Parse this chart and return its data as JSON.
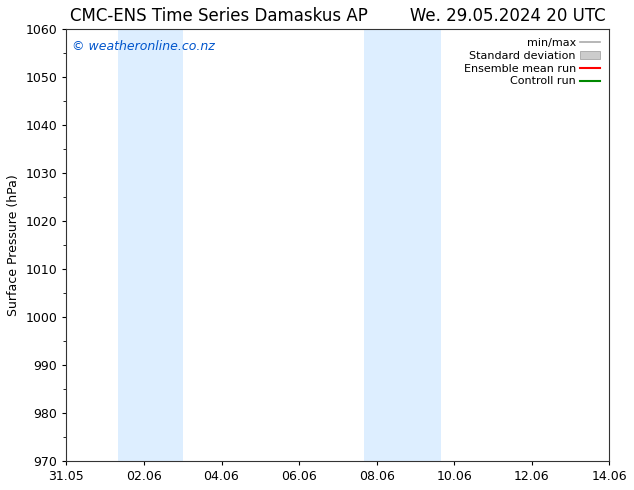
{
  "title_left": "CMC-ENS Time Series Damaskus AP",
  "title_right": "We. 29.05.2024 20 UTC",
  "ylabel": "Surface Pressure (hPa)",
  "ylim": [
    970,
    1060
  ],
  "yticks": [
    970,
    980,
    990,
    1000,
    1010,
    1020,
    1030,
    1040,
    1050,
    1060
  ],
  "xlim_start": 0,
  "xlim_end": 14,
  "xtick_labels": [
    "31.05",
    "02.06",
    "04.06",
    "06.06",
    "08.06",
    "10.06",
    "12.06",
    "14.06"
  ],
  "xtick_positions": [
    0,
    2,
    4,
    6,
    8,
    10,
    12,
    14
  ],
  "shaded_bands": [
    {
      "x_start": 1.33,
      "x_end": 3.0
    },
    {
      "x_start": 7.67,
      "x_end": 9.67
    }
  ],
  "shade_color": "#ddeeff",
  "watermark": "© weatheronline.co.nz",
  "watermark_color": "#0055cc",
  "legend_items": [
    {
      "label": "min/max",
      "type": "line",
      "color": "#aaaaaa",
      "lw": 1.2
    },
    {
      "label": "Standard deviation",
      "type": "patch",
      "color": "#cccccc"
    },
    {
      "label": "Ensemble mean run",
      "type": "line",
      "color": "#ff0000",
      "lw": 1.5
    },
    {
      "label": "Controll run",
      "type": "line",
      "color": "#008800",
      "lw": 1.5
    }
  ],
  "bg_color": "#ffffff",
  "title_fontsize": 12,
  "tick_fontsize": 9,
  "label_fontsize": 9,
  "legend_fontsize": 8,
  "watermark_fontsize": 9
}
